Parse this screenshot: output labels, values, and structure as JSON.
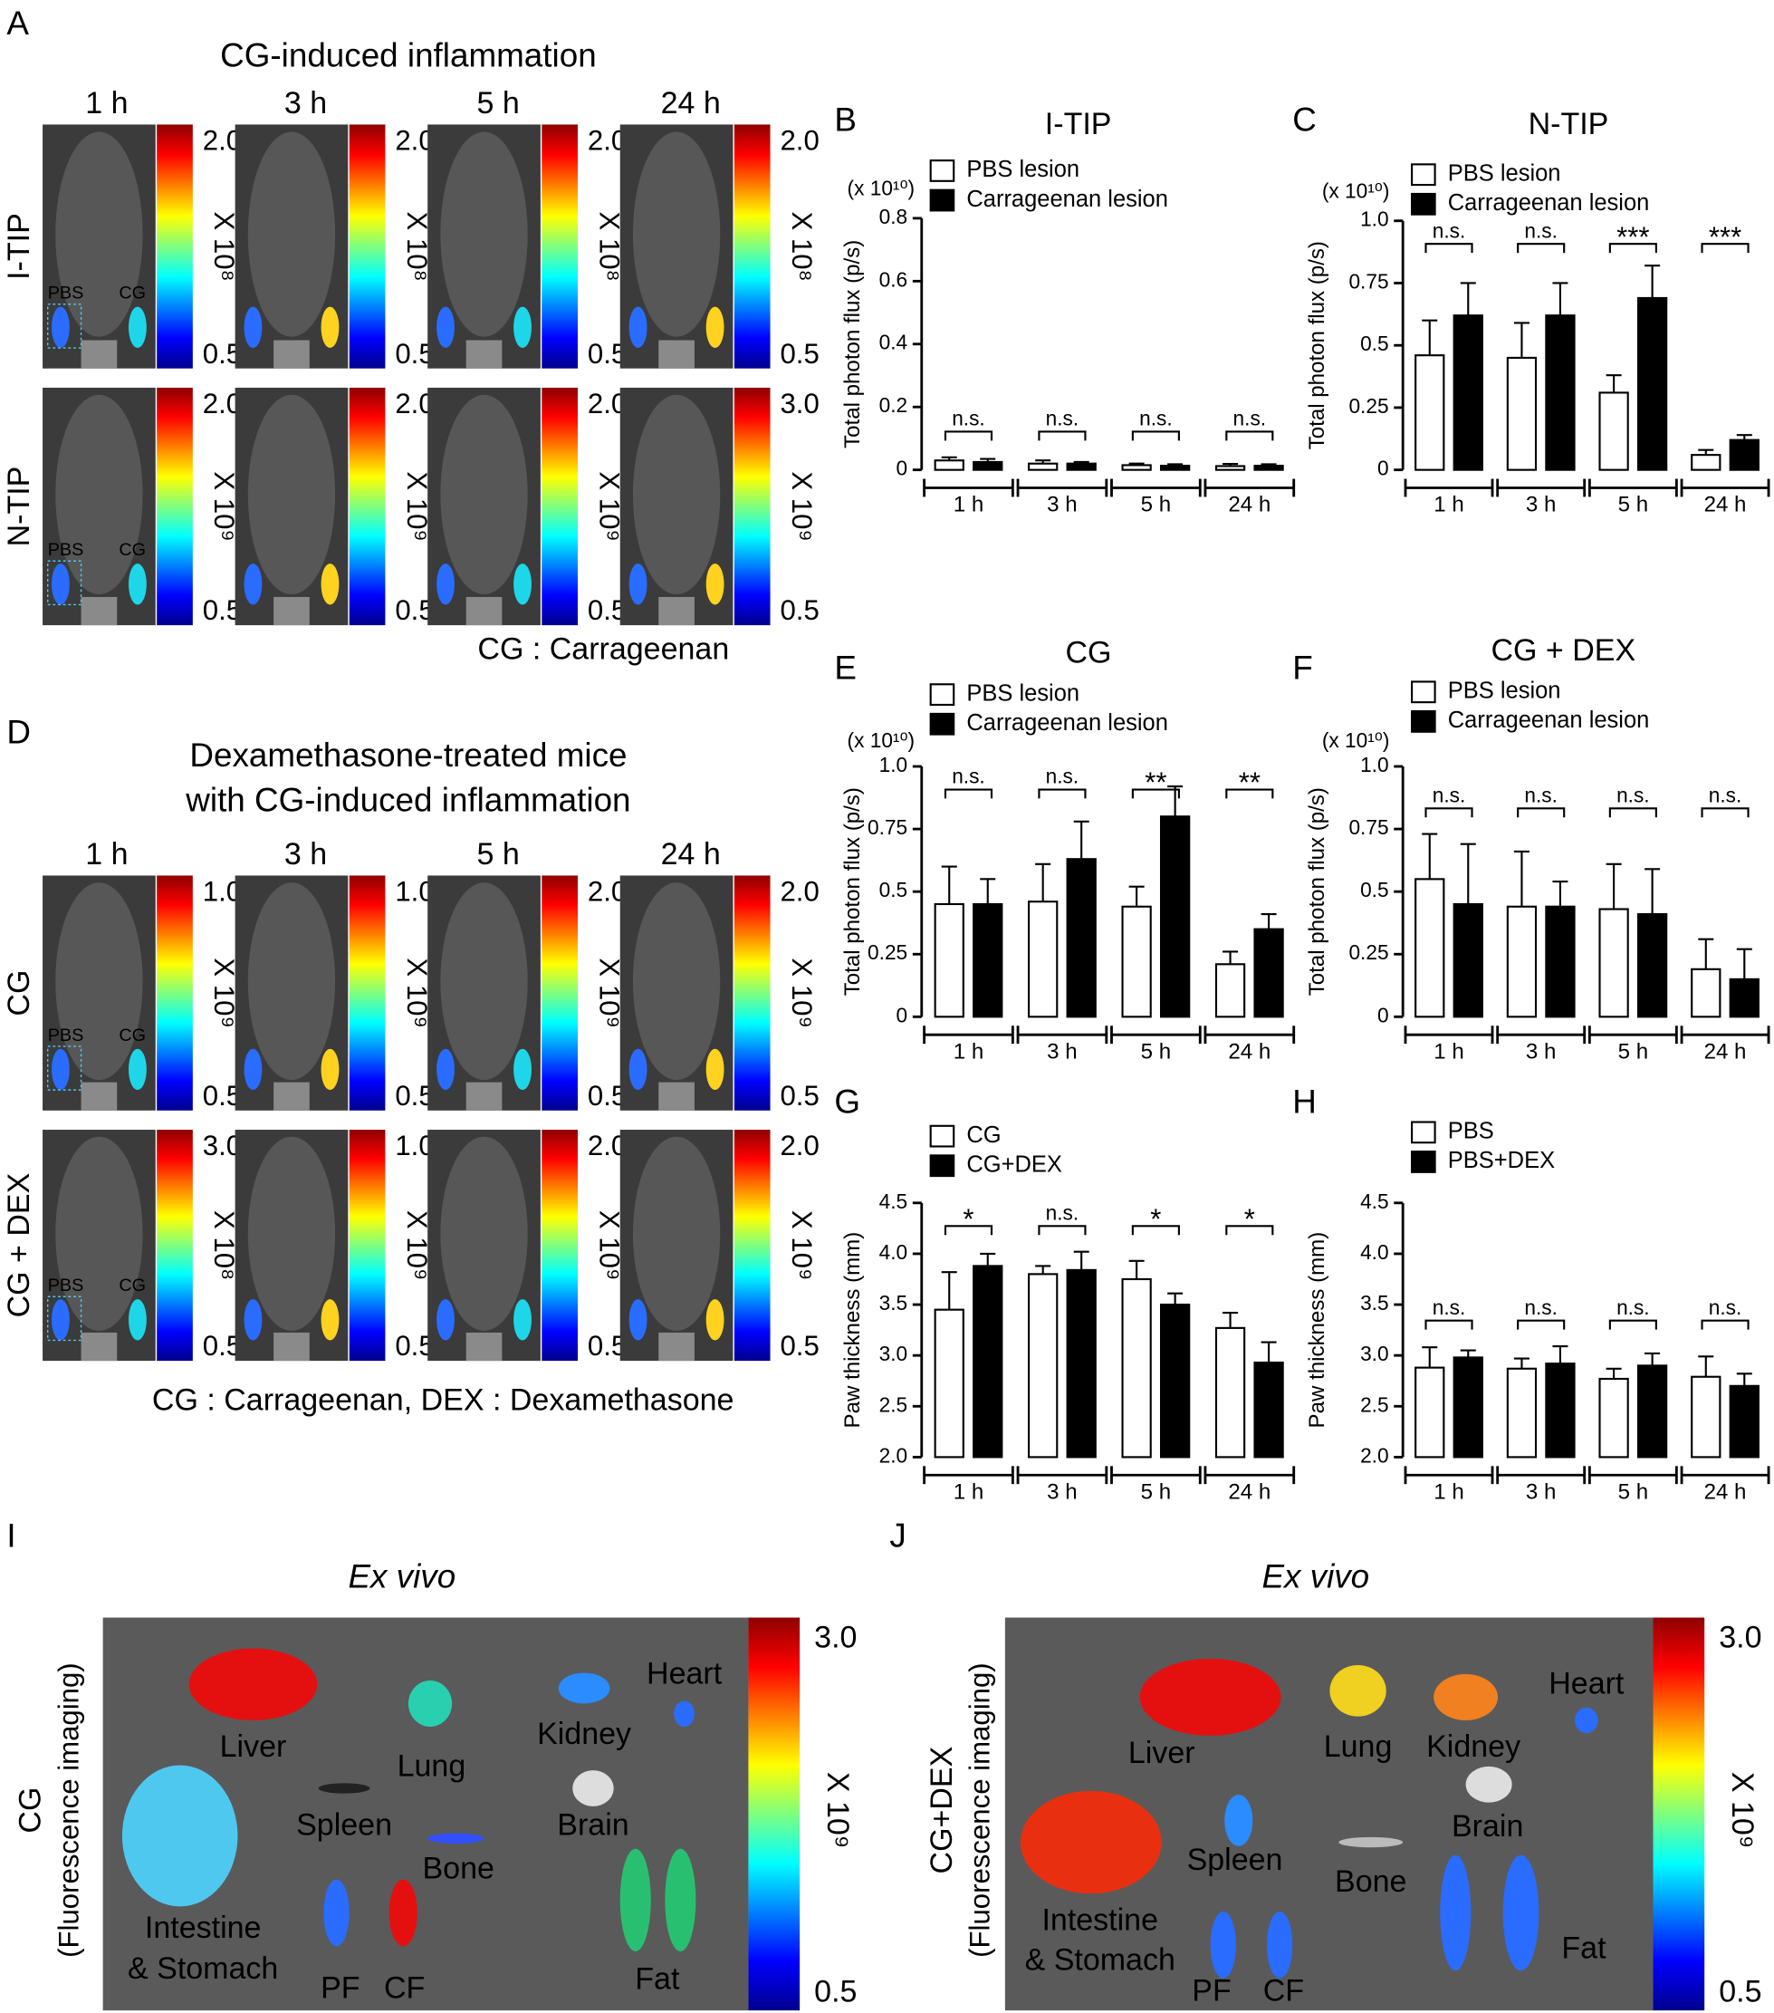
{
  "panel_a": {
    "letter": "A",
    "title": "CG-induced inflammation",
    "times": [
      "1 h",
      "3 h",
      "5 h",
      "24 h"
    ],
    "rows": [
      {
        "label": "I-TIP",
        "color": "#1a2a6c",
        "scale_max": [
          "2.0",
          "2.0",
          "2.0",
          "2.0"
        ],
        "scale_min": [
          "0.5",
          "0.5",
          "0.5",
          "0.5"
        ],
        "exponent": [
          "X 10⁸",
          "X 10⁸",
          "X 10⁸",
          "X 10⁸"
        ]
      },
      {
        "label": "N-TIP",
        "color": "#e8231f",
        "scale_max": [
          "2.0",
          "2.0",
          "2.0",
          "3.0"
        ],
        "scale_min": [
          "0.5",
          "0.5",
          "0.5",
          "0.5"
        ],
        "exponent": [
          "X 10⁹",
          "X 10⁹",
          "X 10⁹",
          "X 10⁹"
        ]
      }
    ],
    "region_labels": [
      "PBS",
      "CG"
    ],
    "footnote": "CG : Carrageenan"
  },
  "panel_d": {
    "letter": "D",
    "title": [
      "Dexamethasone-treated mice",
      "with CG-induced inflammation"
    ],
    "times": [
      "1 h",
      "3 h",
      "5 h",
      "24 h"
    ],
    "rows": [
      {
        "label": "CG",
        "color": "#000000",
        "scale_max": [
          "1.0",
          "1.0",
          "2.0",
          "2.0"
        ],
        "scale_min": [
          "0.5",
          "0.5",
          "0.5",
          "0.5"
        ],
        "exponent": [
          "X 10⁹",
          "X 10⁹",
          "X 10⁹",
          "X 10⁹"
        ]
      },
      {
        "label": "CG + DEX",
        "color": "#000000",
        "scale_max": [
          "3.0",
          "1.0",
          "2.0",
          "2.0"
        ],
        "scale_min": [
          "0.5",
          "0.5",
          "0.5",
          "0.5"
        ],
        "exponent": [
          "X 10⁸",
          "X 10⁹",
          "X 10⁹",
          "X 10⁹"
        ]
      }
    ],
    "region_labels": [
      "PBS",
      "CG"
    ],
    "footnote": "CG : Carrageenan, DEX : Dexamethasone"
  },
  "chart_data": [
    {
      "type": "bar",
      "letter": "B",
      "title": "I-TIP",
      "title_color": "#1a2a6c",
      "y_multiplier": "(x 10¹⁰)",
      "ylabel": "Total photon flux (p/s)",
      "categories": [
        "1 h",
        "3 h",
        "5 h",
        "24 h"
      ],
      "series": [
        {
          "name": "PBS lesion",
          "color": "#ffffff",
          "values": [
            0.03,
            0.02,
            0.015,
            0.012
          ],
          "errors": [
            0.01,
            0.01,
            0.005,
            0.007
          ]
        },
        {
          "name": "Carrageenan lesion",
          "color": "#000000",
          "values": [
            0.025,
            0.02,
            0.013,
            0.013
          ],
          "errors": [
            0.01,
            0.005,
            0.005,
            0.005
          ]
        }
      ],
      "significance": [
        "n.s.",
        "n.s.",
        "n.s.",
        "n.s."
      ],
      "ylim": [
        0,
        0.8
      ],
      "yticks": [
        0,
        0.2,
        0.4,
        0.6,
        0.8
      ]
    },
    {
      "type": "bar",
      "letter": "C",
      "title": "N-TIP",
      "title_color": "#e8231f",
      "y_multiplier": "(x 10¹⁰)",
      "ylabel": "Total photon flux (p/s)",
      "categories": [
        "1 h",
        "3 h",
        "5 h",
        "24 h"
      ],
      "series": [
        {
          "name": "PBS lesion",
          "color": "#ffffff",
          "values": [
            0.46,
            0.45,
            0.31,
            0.06
          ],
          "errors": [
            0.14,
            0.14,
            0.07,
            0.02
          ]
        },
        {
          "name": "Carrageenan lesion",
          "color": "#000000",
          "values": [
            0.62,
            0.62,
            0.69,
            0.12
          ],
          "errors": [
            0.13,
            0.13,
            0.13,
            0.02
          ]
        }
      ],
      "significance": [
        "n.s.",
        "n.s.",
        "***",
        "***"
      ],
      "ylim": [
        0,
        1
      ],
      "yticks": [
        0,
        0.25,
        0.5,
        0.75,
        {
          "value": 1,
          "label": "1.0"
        }
      ]
    },
    {
      "type": "bar",
      "letter": "E",
      "title": "CG",
      "title_color": "#000000",
      "y_multiplier": "(x 10¹⁰)",
      "ylabel": "Total photon flux (p/s)",
      "categories": [
        "1 h",
        "3 h",
        "5 h",
        "24 h"
      ],
      "series": [
        {
          "name": "PBS lesion",
          "color": "#ffffff",
          "values": [
            0.45,
            0.46,
            0.44,
            0.21
          ],
          "errors": [
            0.15,
            0.15,
            0.08,
            0.05
          ]
        },
        {
          "name": "Carrageenan lesion",
          "color": "#000000",
          "values": [
            0.45,
            0.63,
            0.8,
            0.35
          ],
          "errors": [
            0.1,
            0.15,
            0.12,
            0.06
          ]
        }
      ],
      "significance": [
        "n.s.",
        "n.s.",
        "**",
        "**"
      ],
      "ylim": [
        0,
        1
      ],
      "yticks": [
        0,
        0.25,
        0.5,
        0.75,
        {
          "value": 1,
          "label": "1.0"
        }
      ]
    },
    {
      "type": "bar",
      "letter": "F",
      "title": "CG + DEX",
      "title_color": "#000000",
      "y_multiplier": "(x 10¹⁰)",
      "ylabel": "Total photon flux (p/s)",
      "categories": [
        "1 h",
        "3 h",
        "5 h",
        "24 h"
      ],
      "series": [
        {
          "name": "PBS lesion",
          "color": "#ffffff",
          "values": [
            0.55,
            0.44,
            0.43,
            0.19
          ],
          "errors": [
            0.18,
            0.22,
            0.18,
            0.12
          ]
        },
        {
          "name": "Carrageenan lesion",
          "color": "#000000",
          "values": [
            0.45,
            0.44,
            0.41,
            0.15
          ],
          "errors": [
            0.24,
            0.1,
            0.18,
            0.12
          ]
        }
      ],
      "significance": [
        "n.s.",
        "n.s.",
        "n.s.",
        "n.s."
      ],
      "ylim": [
        0,
        1
      ],
      "yticks": [
        0,
        0.25,
        0.5,
        0.75,
        {
          "value": 1,
          "label": "1.0"
        }
      ]
    },
    {
      "type": "bar",
      "letter": "G",
      "ylabel": "Paw thickness (mm)",
      "categories": [
        "1 h",
        "3 h",
        "5 h",
        "24 h"
      ],
      "series": [
        {
          "name": "CG",
          "color": "#ffffff",
          "values": [
            3.45,
            3.8,
            3.75,
            3.27
          ],
          "errors": [
            0.37,
            0.08,
            0.18,
            0.15
          ]
        },
        {
          "name": "CG+DEX",
          "color": "#000000",
          "values": [
            3.88,
            3.84,
            3.5,
            2.93
          ],
          "errors": [
            0.12,
            0.18,
            0.11,
            0.2
          ]
        }
      ],
      "significance": [
        "*",
        "n.s.",
        "*",
        "*"
      ],
      "ylim": [
        2,
        4.5
      ],
      "yticks": [
        {
          "value": 2,
          "label": "2.0"
        },
        2.5,
        {
          "value": 3,
          "label": "3.0"
        },
        3.5,
        {
          "value": 4,
          "label": "4.0"
        },
        4.5
      ]
    },
    {
      "type": "bar",
      "letter": "H",
      "ylabel": "Paw thickness (mm)",
      "categories": [
        "1 h",
        "3 h",
        "5 h",
        "24 h"
      ],
      "series": [
        {
          "name": "PBS",
          "color": "#ffffff",
          "values": [
            2.88,
            2.87,
            2.77,
            2.79
          ],
          "errors": [
            0.2,
            0.1,
            0.1,
            0.2
          ]
        },
        {
          "name": "PBS+DEX",
          "color": "#000000",
          "values": [
            2.98,
            2.92,
            2.9,
            2.7
          ],
          "errors": [
            0.07,
            0.17,
            0.12,
            0.12
          ]
        }
      ],
      "significance": [
        "n.s.",
        "n.s.",
        "n.s.",
        "n.s."
      ],
      "ylim": [
        2,
        4.5
      ],
      "yticks": [
        {
          "value": 2,
          "label": "2.0"
        },
        2.5,
        {
          "value": 3,
          "label": "3.0"
        },
        3.5,
        {
          "value": 4,
          "label": "4.0"
        },
        4.5
      ]
    }
  ],
  "panel_i": {
    "letter": "I",
    "title": "Ex vivo",
    "side_label": "CG",
    "side_sublabel": "(Fluorescence imaging)",
    "scale_max": "3.0",
    "scale_min": "0.5",
    "exponent": "X 10⁹",
    "organs": [
      "Liver",
      "Lung",
      "Kidney",
      "Heart",
      "Spleen",
      "Brain",
      "Bone",
      "Intestine",
      "& Stomach",
      "PF",
      "CF",
      "Fat"
    ]
  },
  "panel_j": {
    "letter": "J",
    "title": "Ex vivo",
    "side_label": "CG+DEX",
    "side_sublabel": "(Fluorescence imaging)",
    "scale_max": "3.0",
    "scale_min": "0.5",
    "exponent": "X 10⁹",
    "organs": [
      "Liver",
      "Lung",
      "Kidney",
      "Heart",
      "Brain",
      "Spleen",
      "Bone",
      "Intestine",
      "& Stomach",
      "PF",
      "CF",
      "Fat"
    ]
  }
}
